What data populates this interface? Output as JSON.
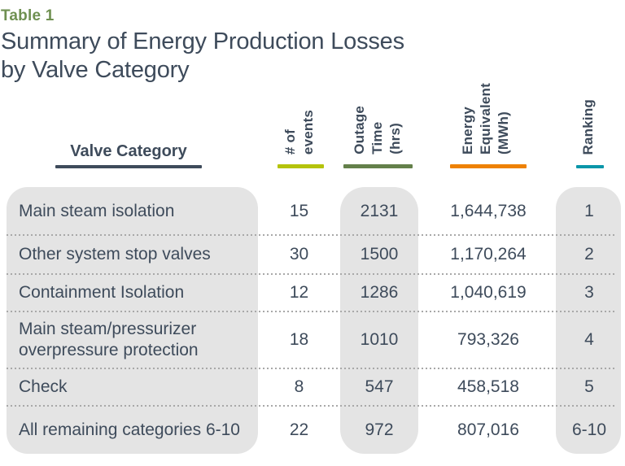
{
  "header": {
    "table_label": "Table 1",
    "title": "Summary of Energy Production Losses\nby Valve Category"
  },
  "columns": {
    "valve_category": {
      "label": "Valve Category",
      "underline_color": "#3e4b5b"
    },
    "events": {
      "label": "# of\nevents",
      "underline_color": "#b5c30b"
    },
    "outage": {
      "label": "Outage\nTime\n(hrs)",
      "underline_color": "#64804a"
    },
    "energy": {
      "label": "Energy\nEquivalent\n(MWh)",
      "underline_color": "#ee8101"
    },
    "ranking": {
      "label": "Ranking",
      "underline_color": "#0a96a9"
    }
  },
  "rows": [
    {
      "category": "Main steam isolation",
      "events": "15",
      "outage": "2131",
      "energy": "1,644,738",
      "ranking": "1"
    },
    {
      "category": "Other system stop valves",
      "events": "30",
      "outage": "1500",
      "energy": "1,170,264",
      "ranking": "2"
    },
    {
      "category": "Containment Isolation",
      "events": "12",
      "outage": "1286",
      "energy": "1,040,619",
      "ranking": "3"
    },
    {
      "category": "Main steam/pressurizer\noverpressure protection",
      "events": "18",
      "outage": "1010",
      "energy": "793,326",
      "ranking": "4"
    },
    {
      "category": "Check",
      "events": "8",
      "outage": "547",
      "energy": "458,518",
      "ranking": "5"
    },
    {
      "category": "All remaining categories 6-10",
      "events": "22",
      "outage": "972",
      "energy": "807,016",
      "ranking": "6-10"
    }
  ],
  "colors": {
    "title_green": "#6f9051",
    "text_dark_slate": "#3e4b5b",
    "panel_gray": "#e4e4e4",
    "events_underline": "#b5c30b",
    "outage_underline": "#64804a",
    "energy_underline": "#ee8101",
    "ranking_underline": "#0a96a9",
    "dotted_separator": "#a8a8a8"
  },
  "chart_data": {
    "type": "table",
    "title": "Table 1: Summary of Energy Production Losses by Valve Category",
    "columns": [
      "Valve Category",
      "# of events",
      "Outage Time (hrs)",
      "Energy Equivalent (MWh)",
      "Ranking"
    ],
    "rows": [
      [
        "Main steam isolation",
        15,
        2131,
        1644738,
        "1"
      ],
      [
        "Other system stop valves",
        30,
        1500,
        1170264,
        "2"
      ],
      [
        "Containment Isolation",
        12,
        1286,
        1040619,
        "3"
      ],
      [
        "Main steam/pressurizer overpressure protection",
        18,
        1010,
        793326,
        "4"
      ],
      [
        "Check",
        8,
        547,
        458518,
        "5"
      ],
      [
        "All remaining categories 6-10",
        22,
        972,
        807016,
        "6-10"
      ]
    ]
  }
}
